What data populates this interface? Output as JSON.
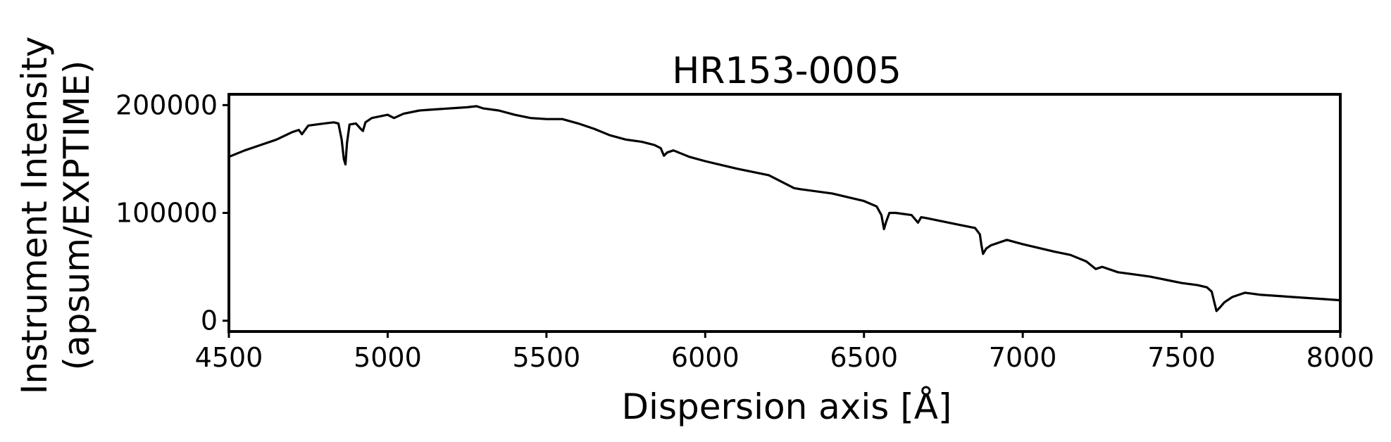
{
  "chart_data": {
    "type": "line",
    "title": "HR153-0005",
    "xlabel": "Dispersion axis [Å]",
    "ylabel_lines": [
      "Instrument Intensity",
      "(apsum/EXPTIME)"
    ],
    "xlim": [
      4500,
      8000
    ],
    "ylim": [
      -10000,
      210000
    ],
    "xticks": [
      4500,
      5000,
      5500,
      6000,
      6500,
      7000,
      7500,
      8000
    ],
    "yticks": [
      0,
      100000,
      200000
    ],
    "grid": false,
    "line_color": "#000000",
    "series": [
      {
        "x": [
          4500,
          4550,
          4600,
          4650,
          4700,
          4720,
          4730,
          4750,
          4800,
          4830,
          4845,
          4855,
          4862,
          4867,
          4872,
          4880,
          4900,
          4915,
          4922,
          4930,
          4950,
          5000,
          5020,
          5050,
          5100,
          5150,
          5200,
          5250,
          5280,
          5300,
          5350,
          5400,
          5450,
          5500,
          5550,
          5600,
          5650,
          5700,
          5750,
          5800,
          5840,
          5860,
          5870,
          5880,
          5900,
          5950,
          6000,
          6100,
          6200,
          6280,
          6300,
          6400,
          6500,
          6540,
          6555,
          6563,
          6570,
          6580,
          6600,
          6650,
          6670,
          6680,
          6700,
          6800,
          6850,
          6865,
          6870,
          6875,
          6885,
          6900,
          6950,
          7000,
          7100,
          7150,
          7200,
          7230,
          7250,
          7300,
          7350,
          7400,
          7450,
          7500,
          7550,
          7580,
          7595,
          7610,
          7620,
          7635,
          7660,
          7700,
          7750,
          7800,
          7850,
          7900,
          7950,
          8000
        ],
        "y": [
          152000,
          158000,
          163000,
          168000,
          175000,
          177000,
          173000,
          181000,
          183000,
          184000,
          183000,
          168000,
          150000,
          145000,
          165000,
          182000,
          183000,
          178000,
          176000,
          184000,
          188000,
          191000,
          188000,
          192000,
          195000,
          196000,
          197000,
          198000,
          199000,
          197000,
          195000,
          191000,
          188000,
          187000,
          187000,
          183000,
          178000,
          172000,
          168000,
          166000,
          163000,
          160000,
          153000,
          156000,
          158000,
          152000,
          148000,
          141000,
          135000,
          123000,
          122000,
          118000,
          111000,
          106000,
          98000,
          85000,
          92000,
          100000,
          100000,
          98000,
          91000,
          96000,
          95000,
          89000,
          86000,
          80000,
          70000,
          62000,
          67000,
          70000,
          75000,
          71000,
          64000,
          61000,
          55000,
          48000,
          50000,
          45000,
          43000,
          41000,
          38000,
          35000,
          33000,
          31000,
          27000,
          9000,
          12000,
          17000,
          22000,
          26000,
          24000,
          23000,
          22000,
          21000,
          20000,
          19000
        ]
      }
    ]
  }
}
